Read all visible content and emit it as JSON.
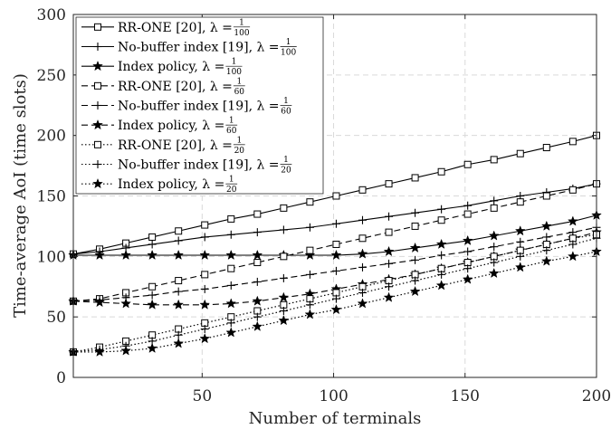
{
  "chart_data": {
    "type": "line",
    "title": "",
    "xlabel": "Number of terminals",
    "ylabel": "Time-average AoI (time slots)",
    "xlim": [
      1,
      200
    ],
    "ylim": [
      0,
      300
    ],
    "xticks": [
      50,
      100,
      150,
      200
    ],
    "yticks": [
      0,
      50,
      100,
      150,
      200,
      250,
      300
    ],
    "grid": true,
    "legend_position": "top-left",
    "x": [
      1,
      11,
      21,
      31,
      41,
      51,
      61,
      71,
      81,
      91,
      101,
      111,
      121,
      131,
      141,
      151,
      161,
      171,
      181,
      191,
      200
    ],
    "series": [
      {
        "name": "RR-ONE [20], λ = 1/100",
        "label_main": "RR-ONE [20], λ = ",
        "label_frac": "1/100",
        "line_style": "solid",
        "marker": "square",
        "color": "#000000",
        "values": [
          102,
          106,
          111,
          116,
          121,
          126,
          131,
          135,
          140,
          145,
          150,
          155,
          160,
          165,
          170,
          176,
          180,
          185,
          190,
          195,
          200
        ]
      },
      {
        "name": "No-buffer index [19], λ = 1/100",
        "label_main": "No-buffer index [19], λ = ",
        "label_frac": "1/100",
        "line_style": "solid",
        "marker": "plus",
        "color": "#000000",
        "values": [
          102,
          104,
          107,
          110,
          113,
          116,
          118,
          120,
          122,
          124,
          127,
          130,
          133,
          136,
          139,
          142,
          146,
          150,
          153,
          156,
          160
        ]
      },
      {
        "name": "Index policy, λ = 1/100",
        "label_main": "Index policy, λ = ",
        "label_frac": "1/100",
        "line_style": "solid",
        "marker": "star",
        "color": "#000000",
        "values": [
          101,
          101,
          101,
          101,
          101,
          101,
          101,
          101,
          101,
          101,
          101,
          102,
          104,
          107,
          110,
          113,
          117,
          121,
          125,
          129,
          134
        ]
      },
      {
        "name": "RR-ONE [20], λ = 1/60",
        "label_main": "RR-ONE [20], λ = ",
        "label_frac": "1/60",
        "line_style": "dashed",
        "marker": "square",
        "color": "#000000",
        "values": [
          63,
          65,
          70,
          75,
          80,
          85,
          90,
          95,
          100,
          105,
          110,
          115,
          120,
          125,
          130,
          135,
          140,
          145,
          150,
          155,
          160
        ]
      },
      {
        "name": "No-buffer index [19], λ = 1/60",
        "label_main": "No-buffer index [19], λ = ",
        "label_frac": "1/60",
        "line_style": "dashed",
        "marker": "plus",
        "color": "#000000",
        "values": [
          63,
          64,
          66,
          68,
          71,
          73,
          76,
          79,
          82,
          85,
          88,
          91,
          94,
          97,
          101,
          104,
          108,
          112,
          116,
          120,
          124
        ]
      },
      {
        "name": "Index policy, λ = 1/60",
        "label_main": "Index policy, λ = ",
        "label_frac": "1/60",
        "line_style": "dashed",
        "marker": "star",
        "color": "#000000",
        "values": [
          63,
          62,
          61,
          60,
          60,
          60,
          61,
          63,
          66,
          69,
          73,
          77,
          81,
          85,
          90,
          95,
          100,
          105,
          110,
          115,
          120
        ]
      },
      {
        "name": "RR-ONE [20], λ = 1/20",
        "label_main": "RR-ONE [20], λ = ",
        "label_frac": "1/20",
        "line_style": "dotted",
        "marker": "square",
        "color": "#000000",
        "values": [
          21,
          25,
          30,
          35,
          40,
          45,
          50,
          55,
          60,
          65,
          70,
          75,
          80,
          85,
          90,
          95,
          100,
          105,
          110,
          115,
          118
        ]
      },
      {
        "name": "No-buffer index [19], λ = 1/20",
        "label_main": "No-buffer index [19], λ = ",
        "label_frac": "1/20",
        "line_style": "dotted",
        "marker": "plus",
        "color": "#000000",
        "values": [
          21,
          23,
          26,
          30,
          35,
          40,
          45,
          50,
          55,
          60,
          65,
          70,
          75,
          80,
          85,
          90,
          95,
          100,
          105,
          110,
          115
        ]
      },
      {
        "name": "Index policy, λ = 1/20",
        "label_main": "Index policy, λ = ",
        "label_frac": "1/20",
        "line_style": "dotted",
        "marker": "star",
        "color": "#000000",
        "values": [
          21,
          21,
          22,
          24,
          28,
          32,
          37,
          42,
          47,
          52,
          56,
          61,
          66,
          71,
          76,
          81,
          86,
          91,
          96,
          100,
          104
        ]
      }
    ]
  }
}
